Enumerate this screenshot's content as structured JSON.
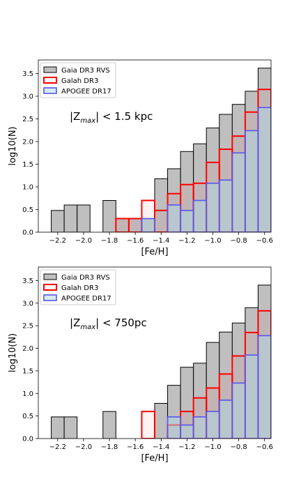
{
  "chart_data": [
    {
      "type": "histogram",
      "annotation": "|Z_max| < 1.5 kpc",
      "annotation_parts": {
        "pre": "|Z",
        "sub": "max",
        "post": "| < 1.5 kpc"
      },
      "xlabel": "[Fe/H]",
      "ylabel": "log10(N)",
      "xlim": [
        -2.35,
        -0.55
      ],
      "ylim": [
        0,
        3.8
      ],
      "xticks": [
        -2.2,
        -2.0,
        -1.8,
        -1.6,
        -1.4,
        -1.2,
        -1.0,
        -0.8,
        -0.6
      ],
      "xtick_labels": [
        "−2.2",
        "−2.0",
        "−1.8",
        "−1.6",
        "−1.4",
        "−1.2",
        "−1.0",
        "−0.8",
        "−0.6"
      ],
      "yticks": [
        0.0,
        0.5,
        1.0,
        1.5,
        2.0,
        2.5,
        3.0,
        3.5
      ],
      "ytick_labels": [
        "0.0",
        "0.5",
        "1.0",
        "1.5",
        "2.0",
        "2.5",
        "3.0",
        "3.5"
      ],
      "bin_edges": [
        -2.35,
        -2.25,
        -2.15,
        -2.05,
        -1.95,
        -1.85,
        -1.75,
        -1.65,
        -1.55,
        -1.45,
        -1.35,
        -1.25,
        -1.15,
        -1.05,
        -0.95,
        -0.85,
        -0.75,
        -0.65,
        -0.55
      ],
      "legend_position": "upper-left",
      "series": [
        {
          "name": "Gaia DR3 RVS",
          "style": "gaia",
          "values": [
            0,
            0.48,
            0.6,
            0.6,
            0,
            0.7,
            0.3,
            0.3,
            0.3,
            1.18,
            1.4,
            1.78,
            1.95,
            2.3,
            2.6,
            2.82,
            3.11,
            3.62
          ]
        },
        {
          "name": "Galah DR3",
          "style": "galah",
          "values": [
            0,
            0,
            0,
            0,
            0,
            0,
            0.3,
            0.3,
            0.7,
            0.48,
            0.85,
            1.05,
            1.08,
            1.54,
            1.83,
            2.12,
            2.65,
            3.15
          ]
        },
        {
          "name": "APOGEE DR17",
          "style": "apogee",
          "values": [
            0,
            0,
            0,
            0,
            0,
            0,
            0,
            0,
            0.3,
            0,
            0.6,
            0.48,
            0.7,
            1.08,
            1.15,
            1.75,
            2.24,
            2.75
          ]
        }
      ]
    },
    {
      "type": "histogram",
      "annotation": "|Z_max| < 750pc",
      "annotation_parts": {
        "pre": "|Z",
        "sub": "max",
        "post": "| < 750pc"
      },
      "xlabel": "[Fe/H]",
      "ylabel": "log10(N)",
      "xlim": [
        -2.35,
        -0.55
      ],
      "ylim": [
        0,
        3.8
      ],
      "xticks": [
        -2.2,
        -2.0,
        -1.8,
        -1.6,
        -1.4,
        -1.2,
        -1.0,
        -0.8,
        -0.6
      ],
      "xtick_labels": [
        "−2.2",
        "−2.0",
        "−1.8",
        "−1.6",
        "−1.4",
        "−1.2",
        "−1.0",
        "−0.8",
        "−0.6"
      ],
      "yticks": [
        0.0,
        0.5,
        1.0,
        1.5,
        2.0,
        2.5,
        3.0,
        3.5
      ],
      "ytick_labels": [
        "0.0",
        "0.5",
        "1.0",
        "1.5",
        "2.0",
        "2.5",
        "3.0",
        "3.5"
      ],
      "bin_edges": [
        -2.35,
        -2.25,
        -2.15,
        -2.05,
        -1.95,
        -1.85,
        -1.75,
        -1.65,
        -1.55,
        -1.45,
        -1.35,
        -1.25,
        -1.15,
        -1.05,
        -0.95,
        -0.85,
        -0.75,
        -0.65,
        -0.55
      ],
      "legend_position": "upper-left",
      "series": [
        {
          "name": "Gaia DR3 RVS",
          "style": "gaia",
          "values": [
            0,
            0.48,
            0.48,
            0,
            0,
            0.6,
            0,
            0,
            0,
            0.78,
            1.18,
            1.58,
            1.67,
            2.13,
            2.36,
            2.56,
            2.9,
            3.4
          ]
        },
        {
          "name": "Galah DR3",
          "style": "galah",
          "values": [
            0,
            0,
            0,
            0,
            0,
            0,
            0,
            0,
            0.6,
            0,
            0.3,
            0.6,
            0.9,
            1.12,
            1.43,
            1.83,
            2.35,
            2.83
          ]
        },
        {
          "name": "APOGEE DR17",
          "style": "apogee",
          "values": [
            0,
            0,
            0,
            0,
            0,
            0,
            0,
            0,
            0,
            0,
            0.48,
            0.3,
            0.48,
            0.6,
            0.85,
            1.23,
            1.85,
            2.28
          ]
        }
      ]
    }
  ],
  "colors": {
    "gaia_fill": "#bfbfbf",
    "gaia_edge": "#000000",
    "galah_edge": "#ff0000",
    "galah_fill": "rgba(255,0,0,0.05)",
    "apogee_edge": "#5555ee",
    "apogee_fill": "rgba(173,216,230,0.5)"
  }
}
